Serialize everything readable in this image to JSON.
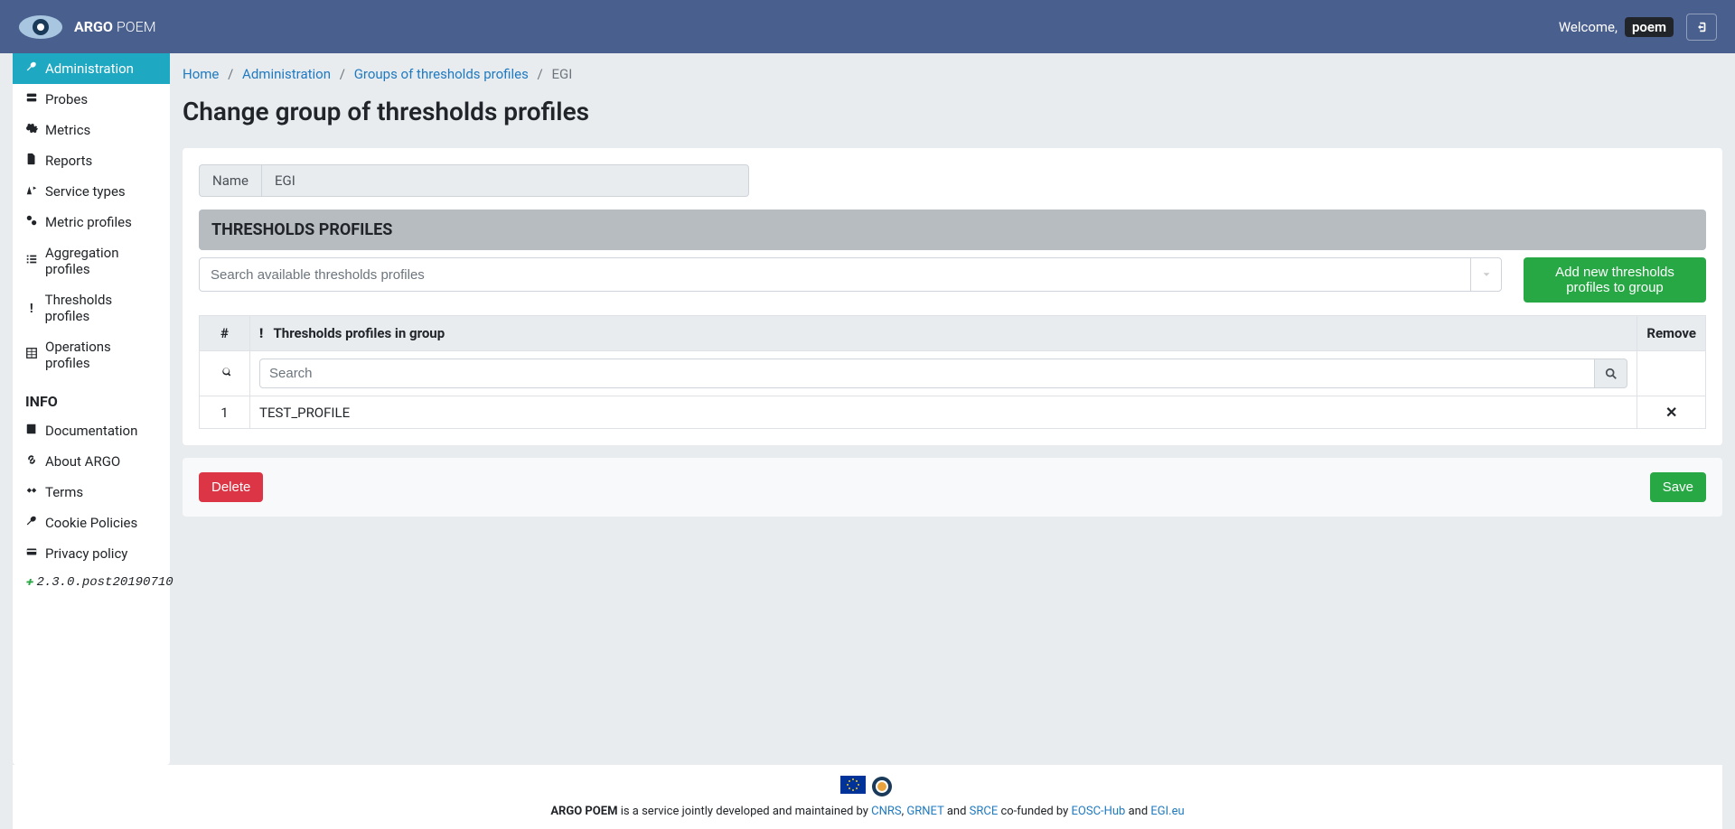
{
  "brand": {
    "bold": "ARGO",
    "light": "POEM"
  },
  "welcome": {
    "prefix": "Welcome,",
    "user": "poem"
  },
  "sidebar": {
    "items": [
      {
        "label": "Administration",
        "icon": "wrench",
        "active": true
      },
      {
        "label": "Probes",
        "icon": "server"
      },
      {
        "label": "Metrics",
        "icon": "cog"
      },
      {
        "label": "Reports",
        "icon": "file"
      },
      {
        "label": "Service types",
        "icon": "sign"
      },
      {
        "label": "Metric profiles",
        "icon": "cogs"
      },
      {
        "label": "Aggregation profiles",
        "icon": "list"
      },
      {
        "label": "Thresholds profiles",
        "icon": "excl"
      },
      {
        "label": "Operations profiles",
        "icon": "table"
      }
    ],
    "info_header": "INFO",
    "info_items": [
      {
        "label": "Documentation",
        "icon": "book"
      },
      {
        "label": "About ARGO",
        "icon": "link"
      },
      {
        "label": "Terms",
        "icon": "hands"
      },
      {
        "label": "Cookie Policies",
        "icon": "wrench"
      },
      {
        "label": "Privacy policy",
        "icon": "card"
      }
    ],
    "version": "2.3.0.post20190710"
  },
  "breadcrumb": {
    "home": "Home",
    "admin": "Administration",
    "group": "Groups of thresholds profiles",
    "current": "EGI"
  },
  "page": {
    "title": "Change group of thresholds profiles",
    "name_label": "Name",
    "name_value": "EGI",
    "section_header": "THRESHOLDS PROFILES",
    "select_placeholder": "Search available thresholds profiles",
    "add_button": "Add new thresholds profiles to group",
    "table": {
      "col_idx": "#",
      "col_name": "Thresholds profiles in group",
      "col_remove": "Remove",
      "search_placeholder": "Search",
      "rows": [
        {
          "idx": "1",
          "name": "TEST_PROFILE"
        }
      ]
    },
    "delete": "Delete",
    "save": "Save"
  },
  "footer": {
    "text_1": "ARGO POEM",
    "text_2": " is a service jointly developed and maintained by ",
    "cnrs": "CNRS",
    "comma": ", ",
    "grnet": "GRNET",
    "and": " and ",
    "srce": "SRCE",
    "text_3": " co-funded by ",
    "eosc": "EOSC-Hub",
    "and2": " and ",
    "egi": "EGI.eu"
  }
}
